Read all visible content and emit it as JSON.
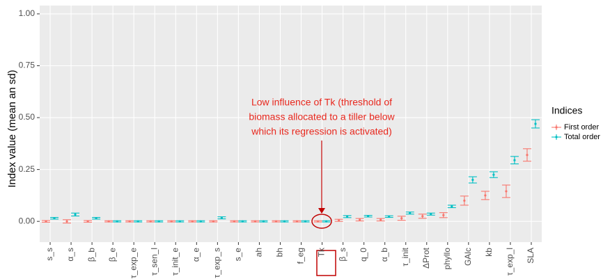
{
  "chart_data": {
    "type": "errorbar",
    "ylabel": "Index value (mean an sd)",
    "categories": [
      "s_s",
      "α_s",
      "β_b",
      "β_e",
      "τ_exp_e",
      "τ_sen_l",
      "τ_init_e",
      "α_e",
      "τ_exp_s",
      "s_e",
      "ah",
      "bh",
      "f_eg",
      "Tk",
      "β_s",
      "q_0",
      "α_b",
      "τ_init",
      "ΔProt",
      "phyllo",
      "GAlc",
      "kb",
      "τ_exp_l",
      "SLA"
    ],
    "series": [
      {
        "name": "First order",
        "color": "#F8766D",
        "values": [
          0,
          0,
          0,
          0,
          0,
          0,
          0,
          0,
          0,
          0,
          0,
          0,
          0,
          0,
          0.005,
          0.008,
          0.008,
          0.015,
          0.025,
          0.03,
          0.1,
          0.125,
          0.145,
          0.32
        ],
        "errors": [
          0.004,
          0.008,
          0.004,
          0.003,
          0.003,
          0.003,
          0.003,
          0.003,
          0.003,
          0.003,
          0.003,
          0.003,
          0.003,
          0.003,
          0.005,
          0.006,
          0.006,
          0.01,
          0.01,
          0.012,
          0.022,
          0.02,
          0.03,
          0.03
        ]
      },
      {
        "name": "Total order",
        "color": "#00BFC4",
        "values": [
          0.015,
          0.033,
          0.015,
          0,
          0,
          0,
          0,
          0,
          0.017,
          0,
          0,
          0,
          0,
          0,
          0.023,
          0.025,
          0.023,
          0.04,
          0.035,
          0.072,
          0.2,
          0.225,
          0.295,
          0.47
        ],
        "errors": [
          0.004,
          0.007,
          0.004,
          0.003,
          0.003,
          0.003,
          0.003,
          0.003,
          0.005,
          0.003,
          0.003,
          0.003,
          0.003,
          0.003,
          0.005,
          0.004,
          0.004,
          0.005,
          0.005,
          0.006,
          0.015,
          0.014,
          0.018,
          0.02
        ]
      }
    ],
    "ylim": [
      -0.1,
      1.04
    ],
    "yticks": [
      {
        "value": 0,
        "label": "0.00"
      },
      {
        "value": 0.25,
        "label": "0.25"
      },
      {
        "value": 0.5,
        "label": "0.50"
      },
      {
        "value": 0.75,
        "label": "0.75"
      },
      {
        "value": 1,
        "label": "1.00"
      }
    ],
    "grid": true,
    "legend_title": "Indices",
    "legend_position": "right",
    "annotation": [
      "Low influence of Tk (threshold of",
      "biomass allocated to a tiller below",
      "which its regression is activated)"
    ]
  }
}
